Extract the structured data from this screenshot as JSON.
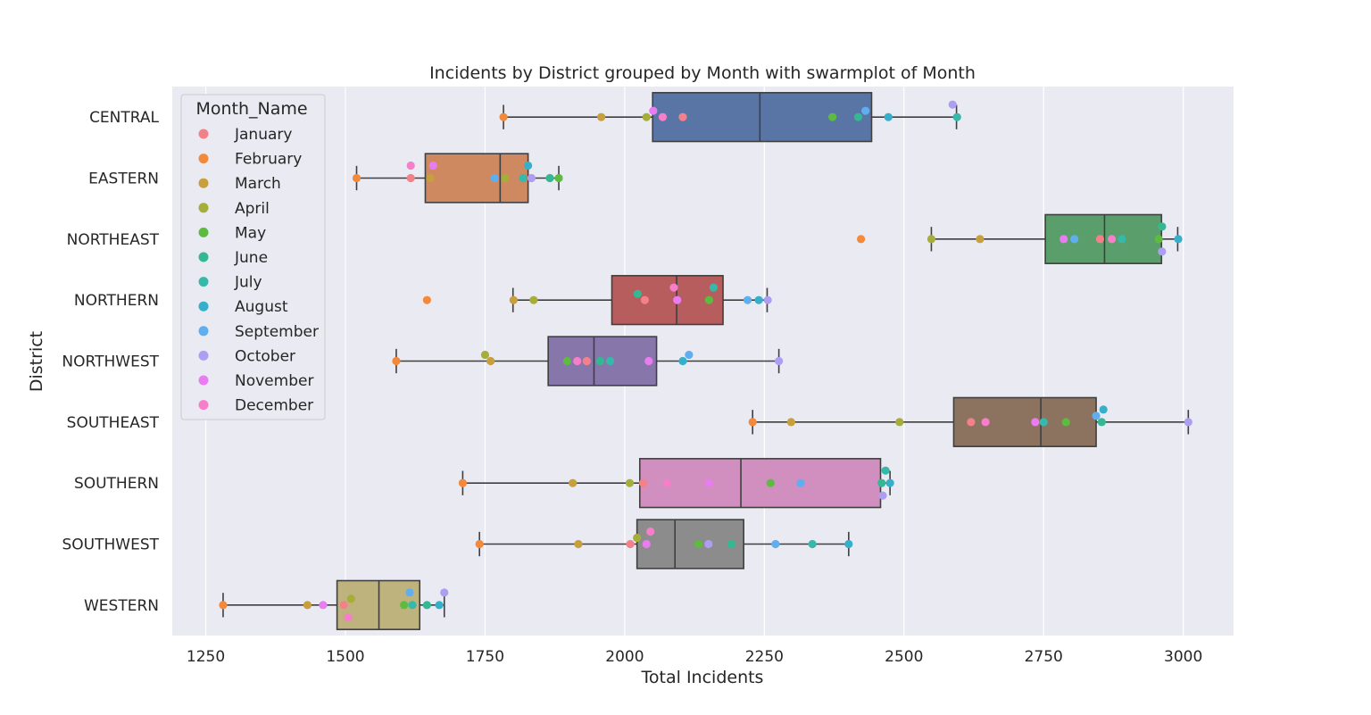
{
  "chart_data": {
    "type": "box",
    "title": "Incidents by District grouped by Month with swarmplot of Month",
    "xlabel": "Total Incidents",
    "ylabel": "District",
    "xlim": [
      1190,
      3090
    ],
    "xticks": [
      1250,
      1500,
      1750,
      2000,
      2250,
      2500,
      2750,
      3000
    ],
    "grid": true,
    "legend": {
      "title": "Month_Name",
      "placement": "top-left",
      "entries": [
        {
          "name": "January",
          "color": "#f48189"
        },
        {
          "name": "February",
          "color": "#f3893b"
        },
        {
          "name": "March",
          "color": "#c79f3d"
        },
        {
          "name": "April",
          "color": "#a6ae3a"
        },
        {
          "name": "May",
          "color": "#5dbb40"
        },
        {
          "name": "June",
          "color": "#34b893"
        },
        {
          "name": "July",
          "color": "#36b9ab"
        },
        {
          "name": "August",
          "color": "#36afcb"
        },
        {
          "name": "September",
          "color": "#5faef0"
        },
        {
          "name": "October",
          "color": "#ae9ef2"
        },
        {
          "name": "November",
          "color": "#ea7cf2"
        },
        {
          "name": "December",
          "color": "#f77ec8"
        }
      ]
    },
    "categories": [
      "CENTRAL",
      "EASTERN",
      "NORTHEAST",
      "NORTHERN",
      "NORTHWEST",
      "SOUTHEAST",
      "SOUTHERN",
      "SOUTHWEST",
      "WESTERN"
    ],
    "boxes": [
      {
        "district": "CENTRAL",
        "whislo": 1783,
        "q1": 2050,
        "median": 2242,
        "q3": 2442,
        "whishi": 2594,
        "color": "#5875a6"
      },
      {
        "district": "EASTERN",
        "whislo": 1520,
        "q1": 1643,
        "median": 1777,
        "q3": 1827,
        "whishi": 1882,
        "color": "#cf8960"
      },
      {
        "district": "NORTHEAST",
        "whislo": 2549,
        "q1": 2753,
        "median": 2859,
        "q3": 2961,
        "whishi": 2990,
        "color": "#5a9f6b"
      },
      {
        "district": "NORTHERN",
        "whislo": 1800,
        "q1": 1977,
        "median": 2093,
        "q3": 2176,
        "whishi": 2255,
        "color": "#b75d5e"
      },
      {
        "district": "NORTHWEST",
        "whislo": 1591,
        "q1": 1863,
        "median": 1945,
        "q3": 2057,
        "whishi": 2276,
        "color": "#8776aa"
      },
      {
        "district": "SOUTHEAST",
        "whislo": 2229,
        "q1": 2589,
        "median": 2745,
        "q3": 2844,
        "whishi": 3009,
        "color": "#8c7360"
      },
      {
        "district": "SOUTHERN",
        "whislo": 1710,
        "q1": 2027,
        "median": 2208,
        "q3": 2458,
        "whishi": 2475,
        "color": "#d08fbf"
      },
      {
        "district": "SOUTHWEST",
        "whislo": 1740,
        "q1": 2022,
        "median": 2090,
        "q3": 2213,
        "whishi": 2401,
        "color": "#8c8c8c"
      },
      {
        "district": "WESTERN",
        "whislo": 1281,
        "q1": 1485,
        "median": 1560,
        "q3": 1633,
        "whishi": 1677,
        "color": "#bfb37d"
      }
    ],
    "fliers": [
      {
        "district": "NORTHEAST",
        "value": 2423
      },
      {
        "district": "NORTHERN",
        "value": 1646
      }
    ],
    "points": {
      "CENTRAL": [
        2104,
        1783,
        1958,
        2039,
        2372,
        2418,
        2595,
        2472,
        2431,
        2587,
        2051,
        2068
      ],
      "EASTERN": [
        1617,
        1520,
        1652,
        1786,
        1882,
        1866,
        1818,
        1827,
        1767,
        1833,
        1657,
        1617
      ],
      "NORTHEAST": [
        2851,
        2423,
        2636,
        2549,
        2956,
        2962,
        2890,
        2991,
        2805,
        2962,
        2786,
        2872
      ],
      "NORTHERN": [
        2036,
        1646,
        1801,
        1837,
        2151,
        2023,
        2159,
        2240,
        2220,
        2256,
        2094,
        2088
      ],
      "NORTHWEST": [
        1932,
        1591,
        1760,
        1750,
        1897,
        1956,
        1974,
        2104,
        2115,
        2276,
        2043,
        1915
      ],
      "SOUTHEAST": [
        2620,
        2229,
        2298,
        2492,
        2790,
        2854,
        2750,
        2857,
        2844,
        3009,
        2735,
        2646
      ],
      "SOUTHERN": [
        2033,
        1710,
        1907,
        2009,
        2261,
        2460,
        2467,
        2475,
        2315,
        2462,
        2151,
        2076
      ],
      "SOUTHWEST": [
        2010,
        1740,
        1917,
        2022,
        2132,
        2191,
        2336,
        2401,
        2270,
        2150,
        2039,
        2046
      ],
      "WESTERN": [
        1497,
        1281,
        1432,
        1510,
        1605,
        1646,
        1620,
        1668,
        1615,
        1677,
        1460,
        1505
      ]
    }
  }
}
